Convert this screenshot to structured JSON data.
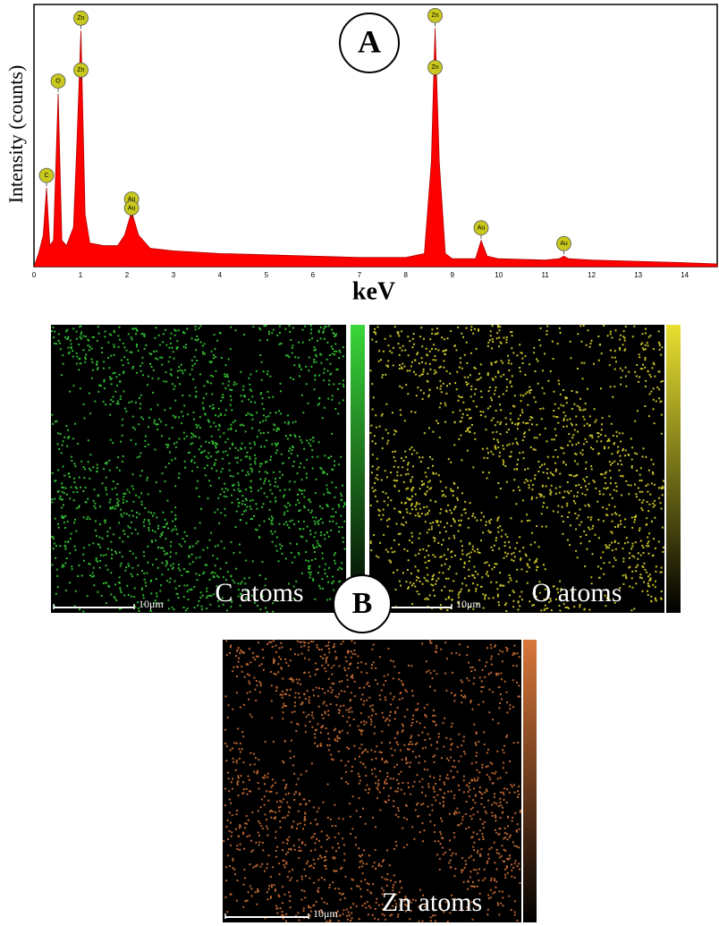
{
  "chart_data": {
    "type": "area",
    "x_label": "keV",
    "y_label": "Intensity (counts)",
    "x": [
      0,
      0.1,
      0.2,
      0.27,
      0.34,
      0.42,
      0.52,
      0.6,
      0.7,
      0.85,
      0.93,
      1.01,
      1.1,
      1.2,
      1.5,
      1.8,
      1.95,
      2.1,
      2.25,
      2.5,
      3,
      4,
      5,
      6,
      7,
      8,
      8.4,
      8.55,
      8.63,
      8.72,
      8.85,
      9,
      9.5,
      9.62,
      9.75,
      10,
      11,
      11.3,
      11.4,
      11.5,
      12,
      13,
      14,
      14.7
    ],
    "values": [
      0,
      5,
      12,
      30,
      8,
      10,
      66,
      10,
      8,
      15,
      50,
      90,
      20,
      9,
      8,
      8,
      12,
      21,
      12,
      7,
      6,
      5,
      4.5,
      4,
      3.5,
      3.5,
      5,
      40,
      91,
      40,
      5,
      3,
      3,
      10,
      4,
      3,
      2.5,
      3,
      4,
      3,
      2.5,
      2,
      1.5,
      1
    ],
    "color": "#ff0000",
    "xlim": [
      0,
      14.7
    ],
    "ylim": [
      0,
      100
    ],
    "xticks": [
      0,
      1,
      2,
      3,
      4,
      5,
      6,
      7,
      8,
      9,
      10,
      11,
      12,
      13,
      14
    ],
    "peak_labels": [
      {
        "label": "C",
        "x": 0.27
      },
      {
        "label": "O",
        "x": 0.52
      },
      {
        "label": "Zn",
        "x": 1.01
      },
      {
        "label": "Zn",
        "x": 1.01
      },
      {
        "label": "Au",
        "x": 2.1
      },
      {
        "label": "Au",
        "x": 2.1
      },
      {
        "label": "Zn",
        "x": 8.63
      },
      {
        "label": "Zn",
        "x": 8.63
      },
      {
        "label": "Au",
        "x": 9.62
      },
      {
        "label": "Au",
        "x": 11.4
      }
    ]
  },
  "panel_labels": [
    "A",
    "B"
  ],
  "maps": [
    {
      "label": "C atoms",
      "scale_bar": "10μm",
      "color": "#39d739"
    },
    {
      "label": "O atoms",
      "scale_bar": "10μm",
      "color": "#e8e030"
    },
    {
      "label": "Zn atoms",
      "scale_bar": "10μm",
      "color": "#d8773a"
    }
  ]
}
